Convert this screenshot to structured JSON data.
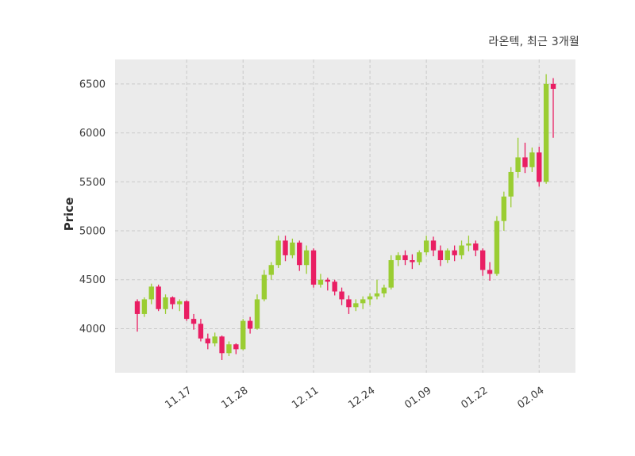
{
  "chart": {
    "title": "라온텍, 최근 3개월",
    "ylabel": "Price"
  },
  "chart_data": {
    "type": "candlestick",
    "title": "라온텍, 최근 3개월",
    "ylabel": "Price",
    "ylim": [
      3550,
      6750
    ],
    "yticks": [
      4000,
      4500,
      5000,
      5500,
      6000,
      6500
    ],
    "xticks": [
      {
        "index": 7,
        "label": "11.17"
      },
      {
        "index": 15,
        "label": "11.28"
      },
      {
        "index": 25,
        "label": "12.11"
      },
      {
        "index": 33,
        "label": "12.24"
      },
      {
        "index": 41,
        "label": "01.09"
      },
      {
        "index": 49,
        "label": "01.22"
      },
      {
        "index": 57,
        "label": "02.04"
      }
    ],
    "up_color": "#9acd32",
    "down_color": "#e91e63",
    "background": "#ebebeb",
    "grid_color": "#c9c9c9",
    "grid_style": "dashed",
    "legend": "none",
    "candles_format": [
      "open",
      "high",
      "low",
      "close"
    ],
    "candles": [
      [
        4280,
        4300,
        3970,
        4150
      ],
      [
        4150,
        4320,
        4120,
        4300
      ],
      [
        4300,
        4460,
        4250,
        4430
      ],
      [
        4430,
        4450,
        4180,
        4200
      ],
      [
        4200,
        4350,
        4150,
        4320
      ],
      [
        4320,
        4330,
        4200,
        4250
      ],
      [
        4250,
        4300,
        4180,
        4280
      ],
      [
        4280,
        4290,
        4080,
        4100
      ],
      [
        4100,
        4150,
        3990,
        4050
      ],
      [
        4050,
        4100,
        3870,
        3900
      ],
      [
        3900,
        3950,
        3790,
        3850
      ],
      [
        3850,
        3960,
        3820,
        3920
      ],
      [
        3920,
        3930,
        3680,
        3750
      ],
      [
        3750,
        3870,
        3720,
        3840
      ],
      [
        3840,
        3850,
        3740,
        3790
      ],
      [
        3790,
        4100,
        3780,
        4080
      ],
      [
        4080,
        4120,
        3950,
        4000
      ],
      [
        4000,
        4350,
        3990,
        4300
      ],
      [
        4300,
        4600,
        4280,
        4550
      ],
      [
        4550,
        4680,
        4500,
        4650
      ],
      [
        4650,
        4950,
        4620,
        4900
      ],
      [
        4900,
        4950,
        4690,
        4750
      ],
      [
        4750,
        4920,
        4720,
        4880
      ],
      [
        4880,
        4900,
        4590,
        4650
      ],
      [
        4650,
        4850,
        4560,
        4800
      ],
      [
        4800,
        4820,
        4420,
        4450
      ],
      [
        4450,
        4560,
        4420,
        4500
      ],
      [
        4500,
        4520,
        4390,
        4480
      ],
      [
        4480,
        4500,
        4340,
        4380
      ],
      [
        4380,
        4420,
        4240,
        4300
      ],
      [
        4300,
        4340,
        4150,
        4220
      ],
      [
        4220,
        4300,
        4180,
        4260
      ],
      [
        4260,
        4330,
        4200,
        4300
      ],
      [
        4300,
        4360,
        4240,
        4330
      ],
      [
        4330,
        4500,
        4300,
        4360
      ],
      [
        4360,
        4450,
        4320,
        4420
      ],
      [
        4420,
        4750,
        4400,
        4700
      ],
      [
        4700,
        4780,
        4640,
        4750
      ],
      [
        4750,
        4800,
        4650,
        4700
      ],
      [
        4700,
        4760,
        4610,
        4680
      ],
      [
        4680,
        4800,
        4650,
        4780
      ],
      [
        4780,
        4950,
        4750,
        4900
      ],
      [
        4900,
        4940,
        4740,
        4800
      ],
      [
        4800,
        4850,
        4640,
        4700
      ],
      [
        4700,
        4820,
        4670,
        4800
      ],
      [
        4800,
        4850,
        4690,
        4750
      ],
      [
        4750,
        4900,
        4710,
        4850
      ],
      [
        4850,
        4950,
        4790,
        4870
      ],
      [
        4870,
        4900,
        4740,
        4800
      ],
      [
        4800,
        4820,
        4540,
        4600
      ],
      [
        4600,
        4680,
        4490,
        4560
      ],
      [
        4560,
        5150,
        4540,
        5100
      ],
      [
        5100,
        5400,
        5000,
        5350
      ],
      [
        5350,
        5650,
        5240,
        5600
      ],
      [
        5600,
        5950,
        5540,
        5750
      ],
      [
        5750,
        5900,
        5590,
        5650
      ],
      [
        5650,
        5850,
        5600,
        5800
      ],
      [
        5800,
        5860,
        5450,
        5500
      ],
      [
        5500,
        6600,
        5480,
        6500
      ],
      [
        6500,
        6560,
        5950,
        6450
      ]
    ]
  }
}
